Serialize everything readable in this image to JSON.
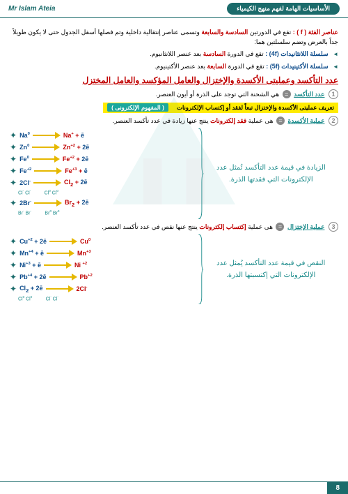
{
  "header": {
    "right": "الأساسيات الهامة لفهم منهج الكيمياء",
    "left": "Mr Islam Ateia"
  },
  "intro": {
    "title": "عناصر الفئة ( f ) :",
    "body1": "تقع في الدورتين ",
    "p67": "السادسة والسابعة",
    "body2": " وتسمى عناصر إنتقالية داخلية وتم فصلها أسفل الجدول حتى لا يكون طويلاً جداً بالعرض وتضم سلسلتين هما:"
  },
  "series": {
    "l1a": "سلسلة اللانثانيدات (4f) :",
    "l1b": " تقع في الدورة ",
    "l1c": "السادسة",
    "l1d": " بعد عنصر اللانثانيوم.",
    "l2a": "سلسلة الأكتينيدات (5f) :",
    "l2b": " تقع في الدورة ",
    "l2c": "السابعة",
    "l2d": " بعد عنصر الأكتينيوم."
  },
  "main_title": "عدد التأكسد وعمليتى الأكسدة والإختزال والعامل المؤكسد والعامل المختزل",
  "def1": {
    "num": "1",
    "term": "عدد التأكسد",
    "body": " هي الشحنة التي توجد على الذرة أو أيون العنصر."
  },
  "hl": {
    "yellow": "تعريف عمليتى الأكسدة والإختزال تبعاً لفقد أو إكتساب الإلكترونات ",
    "teal": "( المفهوم الإلكترونى )"
  },
  "def2": {
    "num": "2",
    "term": "عملية الأكسدة",
    "mid": " هى عملية ",
    "red": "فقد إلكترونات",
    "end": " ينتج عنها زيادة في عدد تأكسد العنصر."
  },
  "oxidation_eqs": [
    {
      "r": "Na⁰",
      "p": "Na⁺ + ē"
    },
    {
      "r": "Zn⁰",
      "p": "Zn⁺² + 2ē"
    },
    {
      "r": "Fe⁰",
      "p": "Fe⁺² + 2ē"
    },
    {
      "r": "Fe⁺²",
      "p": "Fe⁺³ + ē"
    },
    {
      "r": "2Cl⁻",
      "p": "Cl₂ + 2ē",
      "diag_l": "Cl⁻   Cl⁻",
      "diag_r": "Cl⁰   Cl⁰"
    },
    {
      "r": "2Br⁻",
      "p": "Br₂ + 2ē",
      "diag_l": "Br⁻   Br⁻",
      "diag_r": "Br⁰   Br⁰"
    }
  ],
  "ox_note": "الزيادة في قيمة عدد التأكسد تُمثل عدد الإلكترونات التي فقدتها الذرة.",
  "def3": {
    "num": "3",
    "term": "عملية الإختزال",
    "mid": " هى عملية ",
    "red": "إكتساب إلكترونات",
    "end": " ينتج عنها نقص في عدد تأكسد العنصر."
  },
  "reduction_eqs": [
    {
      "r": "Cu⁺² + 2ē",
      "p": "Cu⁰"
    },
    {
      "r": "Mn⁺⁴ + ē",
      "p": "Mn⁺³"
    },
    {
      "r": "Ni⁺³ + ē",
      "p": "Ni ⁺²"
    },
    {
      "r": "Pb⁺⁴ + 2ē",
      "p": "Pb⁺²"
    },
    {
      "r": "Cl₂ + 2ē",
      "p": "2Cl⁻",
      "diag_l": "Cl⁰   Cl⁰",
      "diag_r": "Cl⁻   Cl⁻"
    }
  ],
  "red_note": "النقص في قيمة عدد التأكسد يُمثل عدد الإلكترونات التي إكتسبتها الذرة.",
  "page": "8"
}
